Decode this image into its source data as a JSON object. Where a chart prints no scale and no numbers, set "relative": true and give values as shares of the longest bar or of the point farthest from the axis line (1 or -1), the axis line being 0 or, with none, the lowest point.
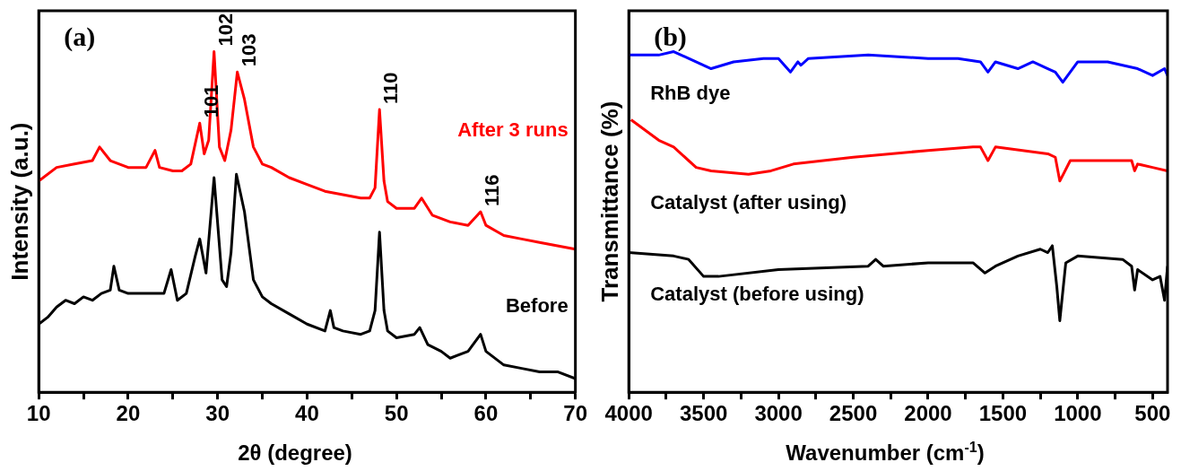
{
  "chart_data": [
    {
      "type": "line",
      "title": "(a)",
      "xlabel": "2θ (degree)",
      "ylabel": "Intensity (a.u.)",
      "relative": true,
      "marker": "none",
      "xlim": [
        10,
        70
      ],
      "xticks": [
        10,
        {
          "value": 15,
          "label": null
        },
        20,
        {
          "value": 25,
          "label": null
        },
        30,
        {
          "value": 35,
          "label": null
        },
        40,
        {
          "value": 45,
          "label": null
        },
        50,
        {
          "value": 55,
          "label": null
        },
        60,
        {
          "value": 65,
          "label": null
        },
        70
      ],
      "series": [
        {
          "name": "After 3 runs",
          "color": "#ff0000",
          "x": [
            10,
            12,
            14,
            16,
            16.8,
            18,
            20,
            22,
            23,
            23.5,
            25,
            26,
            27,
            28,
            28.5,
            29,
            29.6,
            30.2,
            30.8,
            31.5,
            32.2,
            33,
            34,
            35,
            36,
            38,
            40,
            42,
            44,
            46,
            47,
            47.6,
            48.1,
            48.6,
            49,
            50,
            52,
            52.8,
            54,
            56,
            58,
            59.4,
            60,
            62,
            64,
            66,
            68,
            70
          ],
          "values": [
            0.62,
            0.66,
            0.67,
            0.68,
            0.72,
            0.68,
            0.66,
            0.66,
            0.71,
            0.66,
            0.65,
            0.65,
            0.67,
            0.79,
            0.7,
            0.74,
            1.0,
            0.72,
            0.68,
            0.77,
            0.94,
            0.86,
            0.72,
            0.67,
            0.66,
            0.63,
            0.61,
            0.59,
            0.58,
            0.57,
            0.57,
            0.6,
            0.83,
            0.62,
            0.56,
            0.54,
            0.54,
            0.57,
            0.52,
            0.5,
            0.49,
            0.53,
            0.49,
            0.46,
            0.45,
            0.44,
            0.43,
            0.42
          ]
        },
        {
          "name": "Before",
          "color": "#000000",
          "x": [
            10,
            11,
            12,
            13,
            14,
            15,
            16,
            17,
            18,
            18.4,
            19,
            20,
            22,
            24,
            24.8,
            25.5,
            26.5,
            27.5,
            28,
            28.7,
            29.6,
            30.5,
            31,
            31.5,
            32.1,
            33,
            34,
            35,
            36,
            38,
            40,
            42,
            42.6,
            43,
            44,
            46,
            47,
            47.6,
            48.1,
            48.6,
            49,
            50,
            52,
            52.6,
            53.5,
            55,
            56,
            58,
            59.4,
            60,
            62,
            64,
            66,
            68,
            70
          ],
          "values": [
            0.2,
            0.22,
            0.25,
            0.27,
            0.26,
            0.28,
            0.27,
            0.29,
            0.3,
            0.37,
            0.3,
            0.29,
            0.29,
            0.29,
            0.36,
            0.27,
            0.29,
            0.4,
            0.45,
            0.35,
            0.63,
            0.33,
            0.31,
            0.41,
            0.64,
            0.53,
            0.33,
            0.28,
            0.26,
            0.23,
            0.2,
            0.18,
            0.24,
            0.19,
            0.18,
            0.17,
            0.18,
            0.24,
            0.47,
            0.24,
            0.18,
            0.16,
            0.17,
            0.19,
            0.14,
            0.12,
            0.1,
            0.12,
            0.17,
            0.12,
            0.08,
            0.07,
            0.06,
            0.06,
            0.04
          ]
        }
      ],
      "annotations": [
        {
          "text": "101",
          "x": 28,
          "y": 0.79
        },
        {
          "text": "102",
          "x": 29.6,
          "y": 1.0
        },
        {
          "text": "103",
          "x": 32.2,
          "y": 0.94
        },
        {
          "text": "110",
          "x": 48.1,
          "y": 0.83
        },
        {
          "text": "116",
          "x": 59.4,
          "y": 0.53
        }
      ]
    },
    {
      "type": "line",
      "title": "(b)",
      "xlabel": "Wavenumber (cm$^{-1}$)",
      "ylabel": "Transmittance (%)",
      "relative": true,
      "marker": "none",
      "xlim": [
        4000,
        400
      ],
      "xticks": [
        4000,
        {
          "value": 3750,
          "label": null
        },
        3500,
        {
          "value": 3250,
          "label": null
        },
        3000,
        {
          "value": 2750,
          "label": null
        },
        2500,
        {
          "value": 2250,
          "label": null
        },
        2000,
        {
          "value": 1750,
          "label": null
        },
        1500,
        {
          "value": 1250,
          "label": null
        },
        1000,
        {
          "value": 750,
          "label": null
        },
        500
      ],
      "series": [
        {
          "name": "RhB dye",
          "color": "#0000ff",
          "x": [
            4000,
            3800,
            3700,
            3600,
            3450,
            3300,
            3100,
            3000,
            2920,
            2870,
            2850,
            2800,
            2400,
            2000,
            1800,
            1650,
            1600,
            1550,
            1400,
            1300,
            1200,
            1150,
            1100,
            1000,
            800,
            600,
            500,
            420,
            400
          ],
          "values": [
            0.99,
            0.99,
            1.0,
            0.98,
            0.95,
            0.97,
            0.98,
            0.98,
            0.94,
            0.97,
            0.96,
            0.98,
            0.99,
            0.98,
            0.98,
            0.97,
            0.94,
            0.97,
            0.95,
            0.97,
            0.95,
            0.94,
            0.91,
            0.97,
            0.97,
            0.95,
            0.93,
            0.95,
            0.93
          ]
        },
        {
          "name": "Catalyst (after using)",
          "color": "#ff0000",
          "x": [
            3985,
            3800,
            3700,
            3550,
            3450,
            3200,
            3050,
            2900,
            2500,
            2000,
            1700,
            1650,
            1600,
            1550,
            1200,
            1150,
            1120,
            1050,
            800,
            640,
            620,
            600,
            500,
            400
          ],
          "values": [
            0.8,
            0.74,
            0.72,
            0.66,
            0.65,
            0.64,
            0.65,
            0.67,
            0.69,
            0.71,
            0.72,
            0.72,
            0.68,
            0.72,
            0.7,
            0.69,
            0.62,
            0.68,
            0.68,
            0.68,
            0.65,
            0.67,
            0.66,
            0.65
          ]
        },
        {
          "name": "Catalyst (before using)",
          "color": "#000000",
          "x": [
            4000,
            3700,
            3600,
            3500,
            3400,
            3000,
            2400,
            2350,
            2300,
            2000,
            1700,
            1620,
            1550,
            1400,
            1250,
            1200,
            1170,
            1140,
            1120,
            1080,
            1000,
            700,
            640,
            620,
            600,
            500,
            450,
            420,
            400
          ],
          "values": [
            0.41,
            0.4,
            0.39,
            0.34,
            0.34,
            0.36,
            0.37,
            0.39,
            0.37,
            0.38,
            0.38,
            0.35,
            0.37,
            0.4,
            0.42,
            0.41,
            0.43,
            0.31,
            0.21,
            0.38,
            0.4,
            0.39,
            0.37,
            0.3,
            0.36,
            0.33,
            0.34,
            0.27,
            0.37
          ]
        }
      ]
    }
  ]
}
